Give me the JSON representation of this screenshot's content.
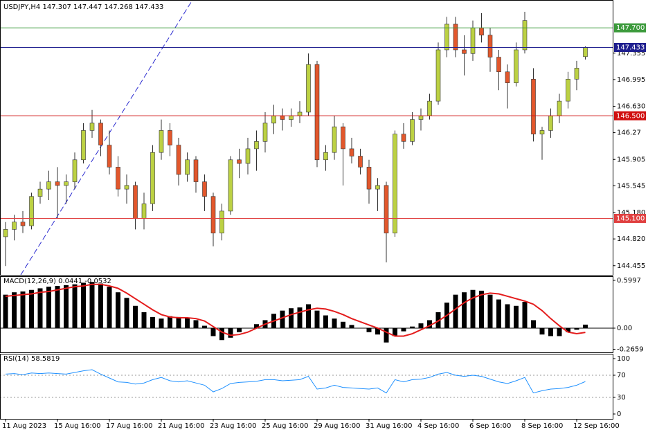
{
  "chart_data": [
    {
      "type": "candlestick",
      "title": "USDJPY,H4  147.307 147.447 147.268 147.433",
      "categories": [
        "11 Aug 2023",
        null,
        null,
        null,
        null,
        null,
        "15 Aug 16:00",
        null,
        null,
        null,
        null,
        null,
        "17 Aug 16:00",
        null,
        null,
        null,
        null,
        null,
        "21 Aug 16:00",
        null,
        null,
        null,
        null,
        null,
        "23 Aug 16:00",
        null,
        null,
        null,
        null,
        null,
        "25 Aug 16:00",
        null,
        null,
        null,
        null,
        null,
        "29 Aug 16:00",
        null,
        null,
        null,
        null,
        null,
        "31 Aug 16:00",
        null,
        null,
        null,
        null,
        null,
        "4 Sep 16:00",
        null,
        null,
        null,
        null,
        null,
        "6 Sep 16:00",
        null,
        null,
        null,
        null,
        null,
        "8 Sep 16:00",
        null,
        null,
        null,
        null,
        null,
        "12 Sep 16:00",
        null
      ],
      "ohlc": [
        [
          144.85,
          145.05,
          144.45,
          144.95
        ],
        [
          144.95,
          145.15,
          144.8,
          145.05
        ],
        [
          145.05,
          145.2,
          144.9,
          145.0
        ],
        [
          145.0,
          145.45,
          144.95,
          145.4
        ],
        [
          145.4,
          145.6,
          145.3,
          145.5
        ],
        [
          145.5,
          145.75,
          145.35,
          145.6
        ],
        [
          145.6,
          145.8,
          145.1,
          145.55
        ],
        [
          145.55,
          145.7,
          145.3,
          145.6
        ],
        [
          145.6,
          146.0,
          145.5,
          145.9
        ],
        [
          145.9,
          146.4,
          145.85,
          146.3
        ],
        [
          146.3,
          146.58,
          146.2,
          146.4
        ],
        [
          146.4,
          146.45,
          145.95,
          146.1
        ],
        [
          146.1,
          146.3,
          145.7,
          145.8
        ],
        [
          145.8,
          145.95,
          145.4,
          145.5
        ],
        [
          145.5,
          145.7,
          145.3,
          145.55
        ],
        [
          145.55,
          145.6,
          144.95,
          145.1
        ],
        [
          145.1,
          145.45,
          144.95,
          145.3
        ],
        [
          145.3,
          146.1,
          145.2,
          146.0
        ],
        [
          146.0,
          146.45,
          145.9,
          146.3
        ],
        [
          146.3,
          146.4,
          145.95,
          146.1
        ],
        [
          146.1,
          146.2,
          145.55,
          145.7
        ],
        [
          145.7,
          146.0,
          145.6,
          145.9
        ],
        [
          145.9,
          145.95,
          145.45,
          145.6
        ],
        [
          145.6,
          145.7,
          145.2,
          145.4
        ],
        [
          145.4,
          145.45,
          144.72,
          144.9
        ],
        [
          144.9,
          145.3,
          144.8,
          145.2
        ],
        [
          145.2,
          145.95,
          145.15,
          145.9
        ],
        [
          145.9,
          146.05,
          145.65,
          145.85
        ],
        [
          145.85,
          146.2,
          145.7,
          146.05
        ],
        [
          146.05,
          146.3,
          145.75,
          146.15
        ],
        [
          146.15,
          146.55,
          146.0,
          146.4
        ],
        [
          146.4,
          146.65,
          146.25,
          146.5
        ],
        [
          146.5,
          146.6,
          146.3,
          146.45
        ],
        [
          146.45,
          146.6,
          146.35,
          146.5
        ],
        [
          146.5,
          146.7,
          146.4,
          146.55
        ],
        [
          146.55,
          147.35,
          146.5,
          147.2
        ],
        [
          147.2,
          147.25,
          145.8,
          145.9
        ],
        [
          145.9,
          146.1,
          145.75,
          146.0
        ],
        [
          146.0,
          146.5,
          145.9,
          146.35
        ],
        [
          146.35,
          146.4,
          145.55,
          146.05
        ],
        [
          146.05,
          146.2,
          145.85,
          145.95
        ],
        [
          145.95,
          146.05,
          145.7,
          145.8
        ],
        [
          145.8,
          145.9,
          145.3,
          145.5
        ],
        [
          145.5,
          145.65,
          145.2,
          145.55
        ],
        [
          145.55,
          145.6,
          144.5,
          144.9
        ],
        [
          144.9,
          146.3,
          144.85,
          146.25
        ],
        [
          146.25,
          146.4,
          146.05,
          146.15
        ],
        [
          146.15,
          146.55,
          146.1,
          146.45
        ],
        [
          146.45,
          146.6,
          146.3,
          146.5
        ],
        [
          146.5,
          146.8,
          146.45,
          146.7
        ],
        [
          146.7,
          147.5,
          146.65,
          147.4
        ],
        [
          147.4,
          147.85,
          147.3,
          147.75
        ],
        [
          147.75,
          147.85,
          147.3,
          147.4
        ],
        [
          147.4,
          147.6,
          147.05,
          147.35
        ],
        [
          147.35,
          147.8,
          147.25,
          147.7
        ],
        [
          147.7,
          147.9,
          147.5,
          147.6
        ],
        [
          147.6,
          147.7,
          147.1,
          147.3
        ],
        [
          147.3,
          147.4,
          146.85,
          147.1
        ],
        [
          147.1,
          147.2,
          146.6,
          146.95
        ],
        [
          146.95,
          147.5,
          146.9,
          147.4
        ],
        [
          147.4,
          147.92,
          147.35,
          147.8
        ],
        [
          147.0,
          147.15,
          146.15,
          146.25
        ],
        [
          146.25,
          146.35,
          145.9,
          146.3
        ],
        [
          146.3,
          146.6,
          146.2,
          146.5
        ],
        [
          146.5,
          146.8,
          146.4,
          146.7
        ],
        [
          146.7,
          147.1,
          146.6,
          147.0
        ],
        [
          147.0,
          147.25,
          146.85,
          147.15
        ],
        [
          147.307,
          147.447,
          147.268,
          147.433
        ]
      ],
      "up_color": "#bcd143",
      "down_color": "#e2572c",
      "ylim": [
        144.33,
        148.08
      ],
      "yticks": [
        147.355,
        146.995,
        {
          "value": 146.63,
          "label": "146.630"
        },
        146.27,
        145.905,
        145.545,
        {
          "value": 145.18,
          "label": "145.180"
        },
        {
          "value": 144.82,
          "label": "144.820"
        },
        144.455
      ],
      "hlines": [
        {
          "value": 147.7,
          "label": "147.700",
          "color": "#3c9a3c"
        },
        {
          "value": 147.433,
          "label": "147.433",
          "color": "#1f1f8f"
        },
        {
          "value": 146.5,
          "label": "146.500",
          "color": "#d01010"
        },
        {
          "value": 145.1,
          "label": "145.100",
          "color": "#e04040"
        }
      ]
    },
    {
      "type": "macd",
      "title": "MACD(12,26,9) 0.0441 -0.0532",
      "values": [
        0.42,
        0.45,
        0.46,
        0.48,
        0.5,
        0.52,
        0.53,
        0.54,
        0.55,
        0.57,
        0.58,
        0.56,
        0.52,
        0.45,
        0.38,
        0.28,
        0.2,
        0.14,
        0.12,
        0.15,
        0.14,
        0.13,
        0.1,
        0.03,
        -0.1,
        -0.15,
        -0.12,
        -0.05,
        0.0,
        0.05,
        0.1,
        0.18,
        0.22,
        0.25,
        0.26,
        0.3,
        0.22,
        0.16,
        0.12,
        0.08,
        0.04,
        0.0,
        -0.05,
        -0.08,
        -0.18,
        -0.1,
        -0.04,
        0.02,
        0.06,
        0.1,
        0.2,
        0.32,
        0.42,
        0.45,
        0.48,
        0.47,
        0.42,
        0.36,
        0.3,
        0.28,
        0.33,
        0.1,
        -0.08,
        -0.1,
        -0.1,
        -0.05,
        -0.02,
        0.0441
      ],
      "signal": [
        0.4,
        0.41,
        0.42,
        0.43,
        0.45,
        0.46,
        0.48,
        0.5,
        0.52,
        0.53,
        0.55,
        0.55,
        0.53,
        0.5,
        0.44,
        0.37,
        0.3,
        0.23,
        0.17,
        0.14,
        0.13,
        0.13,
        0.12,
        0.09,
        0.02,
        -0.05,
        -0.09,
        -0.08,
        -0.05,
        0.0,
        0.05,
        0.09,
        0.13,
        0.17,
        0.2,
        0.23,
        0.25,
        0.24,
        0.21,
        0.17,
        0.12,
        0.08,
        0.04,
        0.0,
        -0.05,
        -0.1,
        -0.1,
        -0.07,
        -0.02,
        0.03,
        0.09,
        0.16,
        0.24,
        0.32,
        0.38,
        0.42,
        0.44,
        0.43,
        0.4,
        0.37,
        0.34,
        0.3,
        0.22,
        0.12,
        0.03,
        -0.05,
        -0.07,
        -0.0532
      ],
      "color": "#000000",
      "signal_color": "#e41c1c",
      "ylim": [
        -0.313,
        0.643
      ],
      "yticks": [
        0.5997,
        {
          "value": 0,
          "label": "0.00"
        },
        -0.2659
      ]
    },
    {
      "type": "line",
      "title": "RSI(14) 58.5819",
      "values": [
        72,
        73,
        71,
        74,
        73,
        74,
        73,
        72,
        75,
        78,
        80,
        72,
        65,
        58,
        57,
        54,
        56,
        62,
        66,
        60,
        58,
        60,
        56,
        52,
        40,
        46,
        55,
        57,
        58,
        59,
        62,
        62,
        60,
        61,
        62,
        68,
        45,
        47,
        52,
        48,
        47,
        46,
        45,
        47,
        38,
        62,
        58,
        62,
        63,
        66,
        72,
        75,
        70,
        68,
        70,
        68,
        63,
        58,
        55,
        60,
        66,
        38,
        42,
        45,
        46,
        48,
        52,
        58.5819
      ],
      "color": "#1e90ff",
      "ylim": [
        -8.75,
        107.5
      ],
      "yticks": [
        100,
        70,
        30,
        0
      ]
    }
  ]
}
